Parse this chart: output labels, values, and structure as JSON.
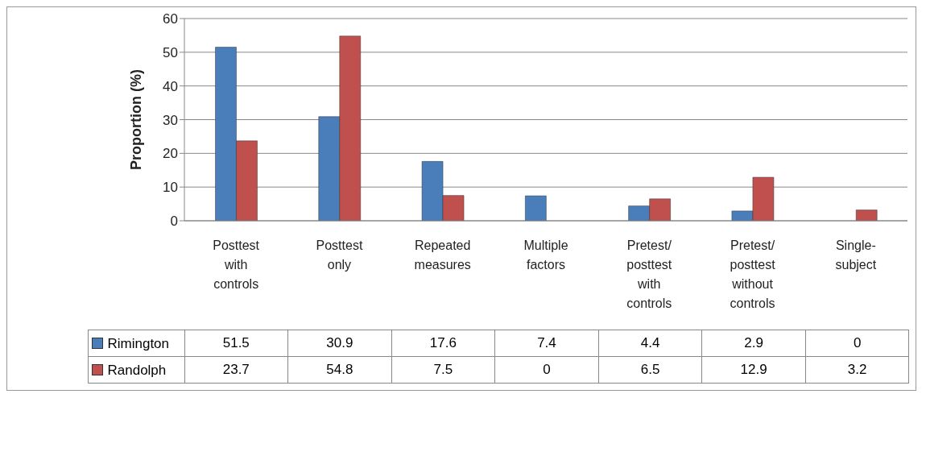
{
  "chart_data": {
    "type": "bar",
    "ylabel": "Proportion (%)",
    "categories": [
      "Posttest with controls",
      "Posttest only",
      "Repeated measures",
      "Multiple factors",
      "Pretest/posttest with controls",
      "Pretest/posttest without controls",
      "Single-subject"
    ],
    "series": [
      {
        "name": "Rimington",
        "color": "#4a7ebb",
        "values": [
          51.5,
          30.9,
          17.6,
          7.4,
          4.4,
          2.9,
          0
        ]
      },
      {
        "name": "Randolph",
        "color": "#c0504d",
        "values": [
          23.7,
          54.8,
          7.5,
          0,
          6.5,
          12.9,
          3.2
        ]
      }
    ],
    "ylim": [
      0,
      60
    ],
    "yticks": [
      0,
      10,
      20,
      30,
      40,
      50,
      60
    ],
    "grid": "y",
    "legend": "bottom left",
    "data_labels": true
  }
}
